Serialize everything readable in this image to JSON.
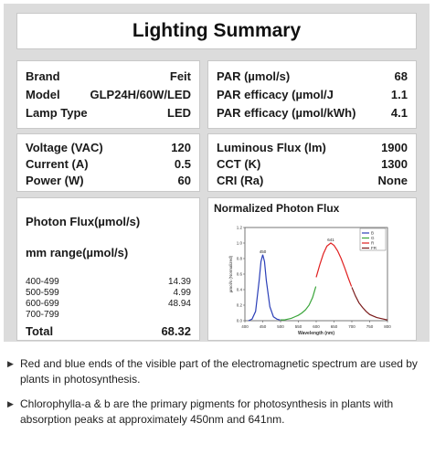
{
  "title": "Lighting Summary",
  "lamp": {
    "rows": [
      {
        "label": "Brand",
        "value": "Feit"
      },
      {
        "label": "Model",
        "value": "GLP24H/60W/LED"
      },
      {
        "label": "Lamp Type",
        "value": "LED"
      }
    ]
  },
  "electrical": {
    "rows": [
      {
        "label": "Voltage (VAC)",
        "value": "120"
      },
      {
        "label": "Current (A)",
        "value": "0.5"
      },
      {
        "label": "Power (W)",
        "value": "60"
      }
    ]
  },
  "photon_flux": {
    "heading": "Photon Flux(µmol/s)",
    "subheading": "mm range(µmol/s)",
    "ranges": [
      {
        "label": "400-499",
        "value": "14.39"
      },
      {
        "label": "500-599",
        "value": "4.99"
      },
      {
        "label": "600-699",
        "value": "48.94"
      },
      {
        "label": "700-799",
        "value": ""
      }
    ],
    "total_label": "Total",
    "total_value": "68.32"
  },
  "par": {
    "rows": [
      {
        "label": "PAR (µmol/s)",
        "value": "68"
      },
      {
        "label": "PAR efficacy (µmol/J",
        "value": "1.1"
      },
      {
        "label": "PAR efficacy (µmol/kWh)",
        "value": "4.1"
      }
    ]
  },
  "light": {
    "rows": [
      {
        "label": "Luminous Flux (lm)",
        "value": "1900"
      },
      {
        "label": "CCT  (K)",
        "value": "1300"
      },
      {
        "label": "CRI (Ra)",
        "value": "None"
      }
    ]
  },
  "chart_title": "Normalized Photon Flux",
  "chart_data": {
    "type": "line",
    "xlabel": "Wavelength (nm)",
    "ylabel": "µmol/s (Normalized)",
    "xlim": [
      400,
      800
    ],
    "ylim": [
      0,
      1.2
    ],
    "x_ticks": [
      "400",
      "450",
      "500",
      "550",
      "600",
      "650",
      "700",
      "750",
      "800"
    ],
    "y_ticks": [
      "0.0",
      "0.2",
      "0.4",
      "0.6",
      "0.8",
      "1.0",
      "1.2"
    ],
    "legend": [
      "B",
      "G",
      "R",
      "FR"
    ],
    "legend_position": "top-right",
    "colors": {
      "B": "#2b3fb8",
      "G": "#3aa53a",
      "R": "#e02020",
      "FR": "#7a1a1a"
    },
    "peaks": [
      {
        "x": 450,
        "label": "450"
      },
      {
        "x": 641,
        "label": "641"
      }
    ],
    "series": [
      {
        "name": "B",
        "x": [
          410,
          420,
          430,
          440,
          445,
          450,
          455,
          460,
          470,
          480,
          490,
          499
        ],
        "y": [
          0.0,
          0.02,
          0.12,
          0.52,
          0.76,
          0.85,
          0.76,
          0.52,
          0.18,
          0.05,
          0.02,
          0.01
        ]
      },
      {
        "name": "G",
        "x": [
          500,
          510,
          520,
          530,
          540,
          550,
          560,
          570,
          580,
          590,
          599
        ],
        "y": [
          0.01,
          0.01,
          0.02,
          0.03,
          0.05,
          0.07,
          0.1,
          0.14,
          0.2,
          0.3,
          0.44
        ]
      },
      {
        "name": "R",
        "x": [
          600,
          610,
          620,
          630,
          641,
          650,
          660,
          670,
          680,
          690,
          699
        ],
        "y": [
          0.56,
          0.72,
          0.86,
          0.96,
          1.0,
          0.97,
          0.9,
          0.8,
          0.68,
          0.55,
          0.44
        ]
      },
      {
        "name": "FR",
        "x": [
          700,
          710,
          720,
          730,
          740,
          750,
          760,
          770,
          780,
          790,
          800
        ],
        "y": [
          0.43,
          0.32,
          0.23,
          0.17,
          0.12,
          0.08,
          0.06,
          0.04,
          0.03,
          0.02,
          0.01
        ]
      }
    ]
  },
  "notes": [
    "Red and blue ends of the visible part of the electromagnetic spectrum are used by plants in photosynthesis.",
    "Chlorophylla-a & b are the primary pigments for photosynthesis in plants with absorption peaks at approximately 450nm and 641nm."
  ],
  "bullet_icon": "triangle-right-icon"
}
